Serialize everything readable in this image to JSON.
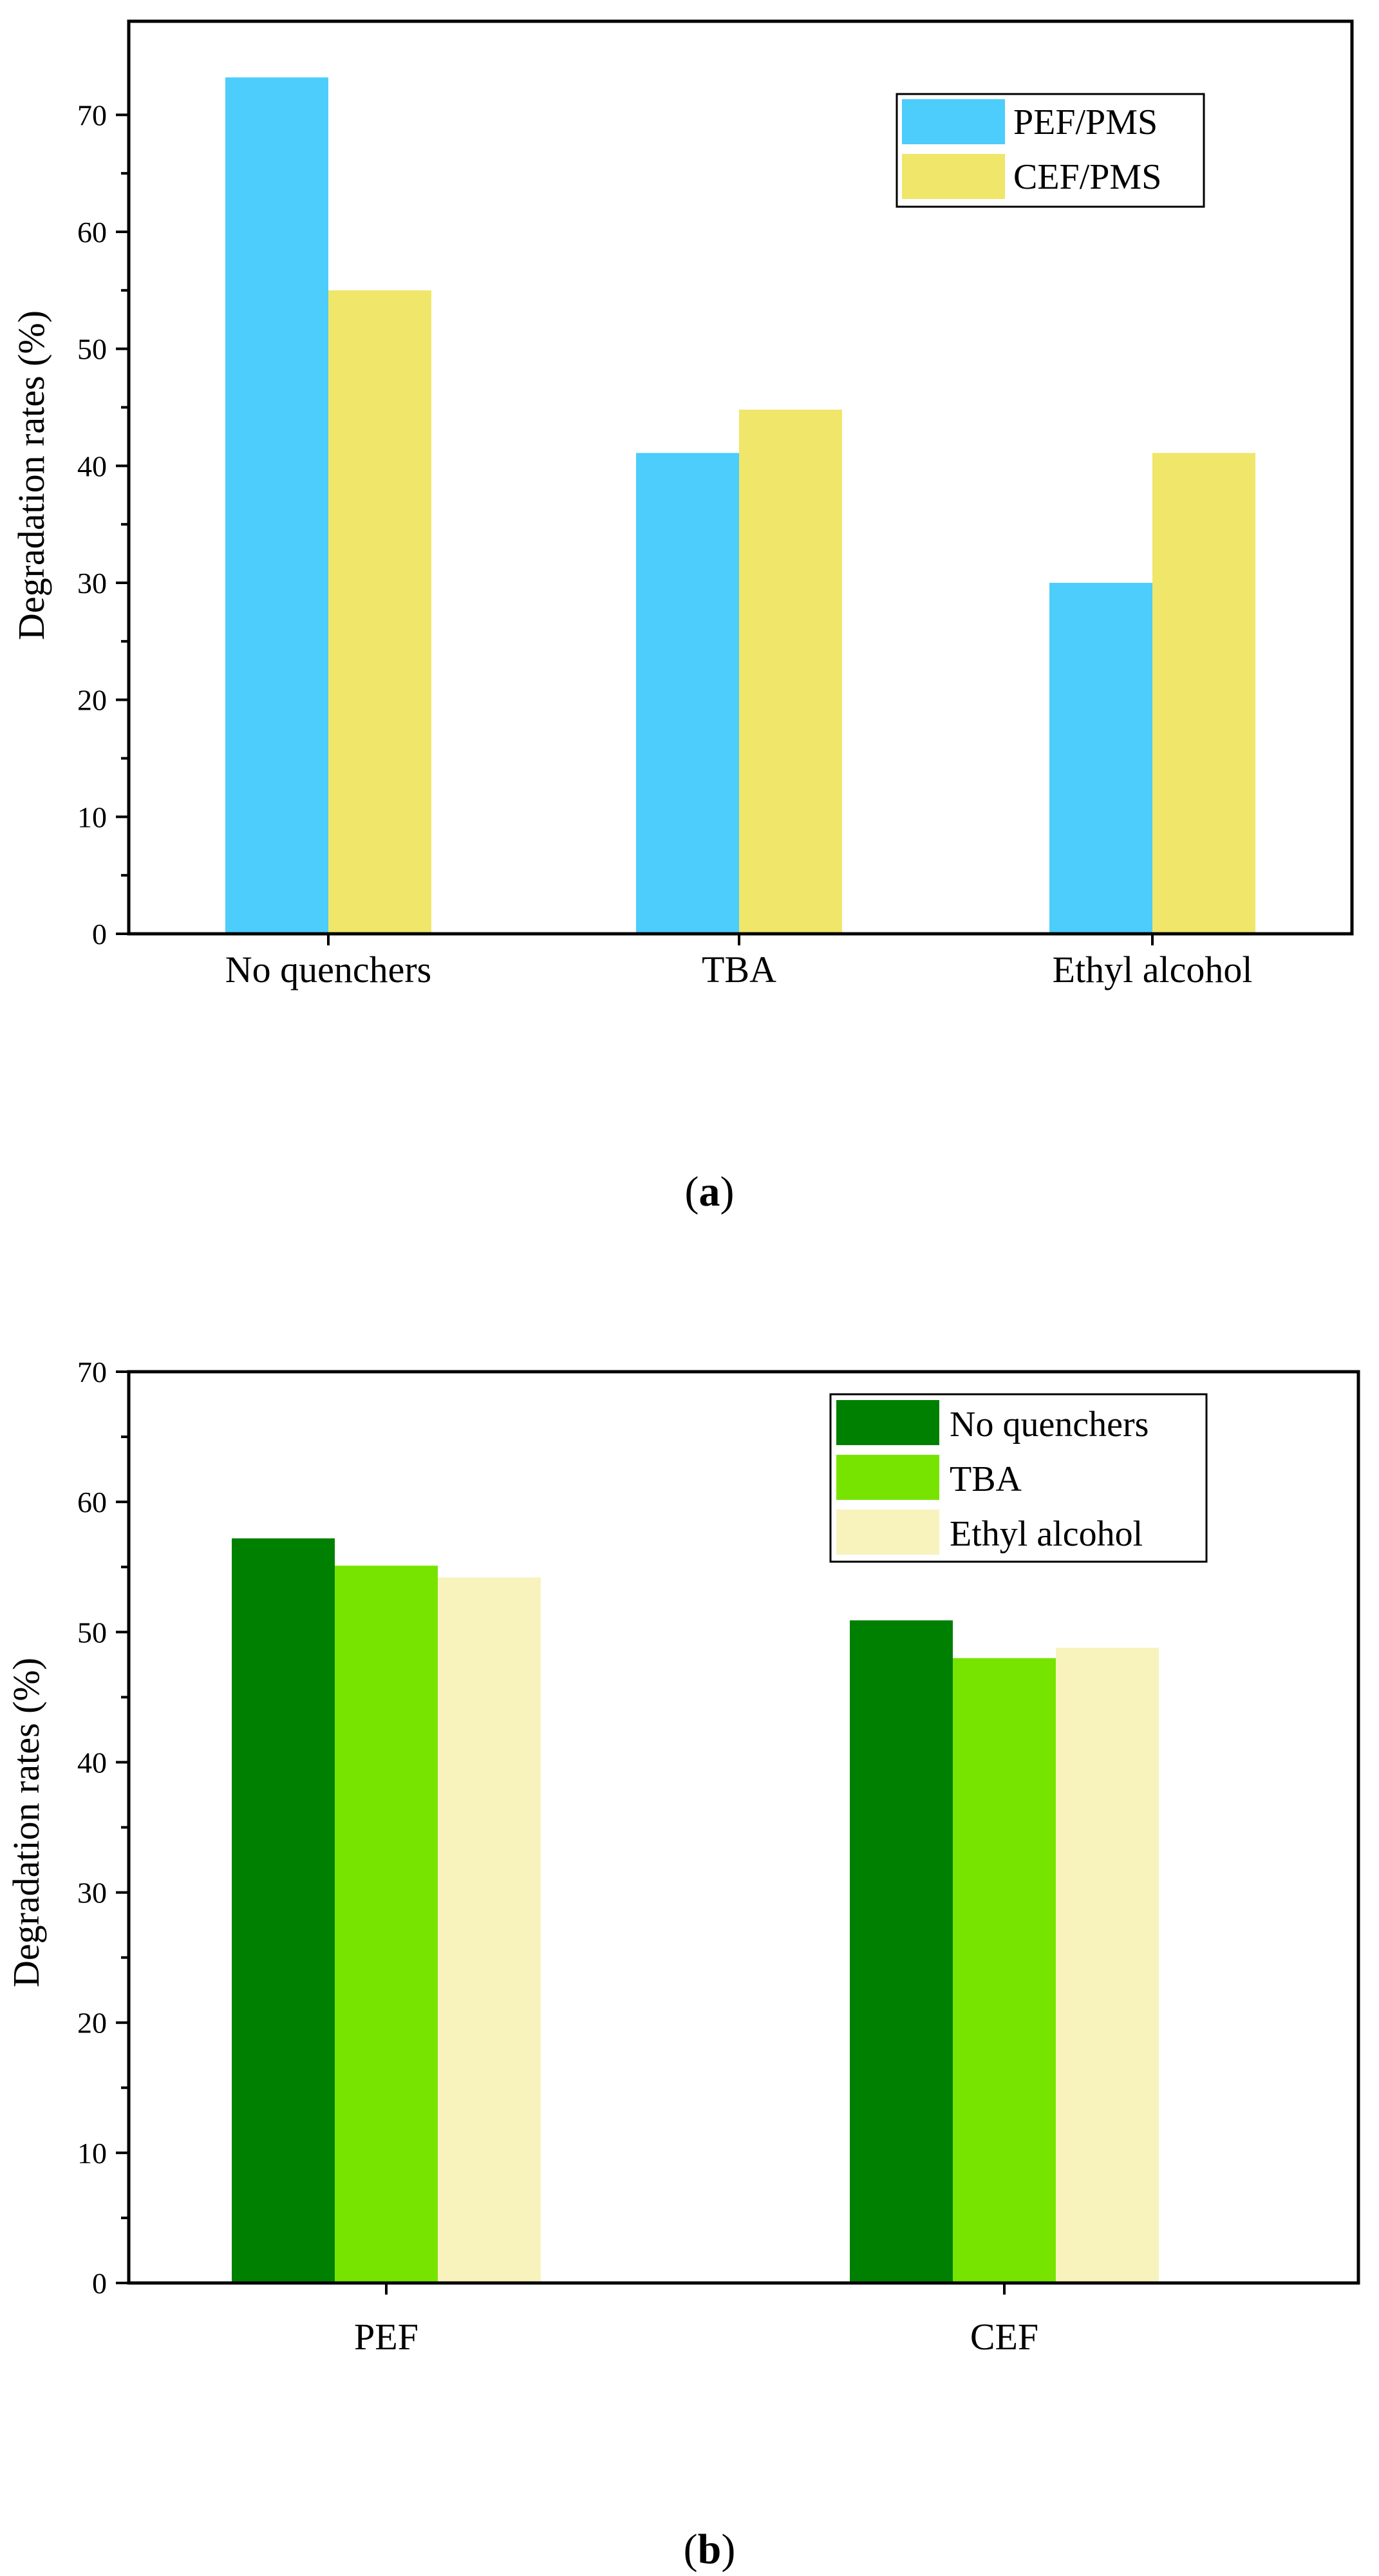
{
  "figure": {
    "caption_a_open": "(",
    "caption_a_letter": "a",
    "caption_a_close": ")",
    "caption_b_open": "(",
    "caption_b_letter": "b",
    "caption_b_close": ")"
  },
  "chart_data": [
    {
      "id": "a",
      "type": "bar",
      "title": "",
      "xlabel": "",
      "ylabel": "Degradation rates (%)",
      "ylim": [
        0,
        78
      ],
      "yticks": [
        0,
        10,
        20,
        30,
        40,
        50,
        60,
        70
      ],
      "grid": false,
      "legend_position": "top-right",
      "categories": [
        "No quenchers",
        "TBA",
        "Ethyl alcohol"
      ],
      "series": [
        {
          "name": "PEF/PMS",
          "color": "#4ccdfb",
          "values": [
            73.2,
            41.1,
            30.0
          ]
        },
        {
          "name": "CEF/PMS",
          "color": "#efe66a",
          "values": [
            55.0,
            44.8,
            41.1
          ]
        }
      ]
    },
    {
      "id": "b",
      "type": "bar",
      "title": "",
      "xlabel": "",
      "ylabel": "Degradation rates (%)",
      "ylim": [
        0,
        70
      ],
      "yticks": [
        0,
        10,
        20,
        30,
        40,
        50,
        60,
        70
      ],
      "grid": false,
      "legend_position": "top-right",
      "categories": [
        "PEF",
        "CEF"
      ],
      "series": [
        {
          "name": "No quenchers",
          "color": "#008000",
          "values": [
            57.2,
            50.9
          ]
        },
        {
          "name": "TBA",
          "color": "#77e400",
          "values": [
            55.1,
            48.0
          ]
        },
        {
          "name": "Ethyl alcohol",
          "color": "#f8f2bd",
          "values": [
            54.2,
            48.8
          ]
        }
      ]
    }
  ]
}
